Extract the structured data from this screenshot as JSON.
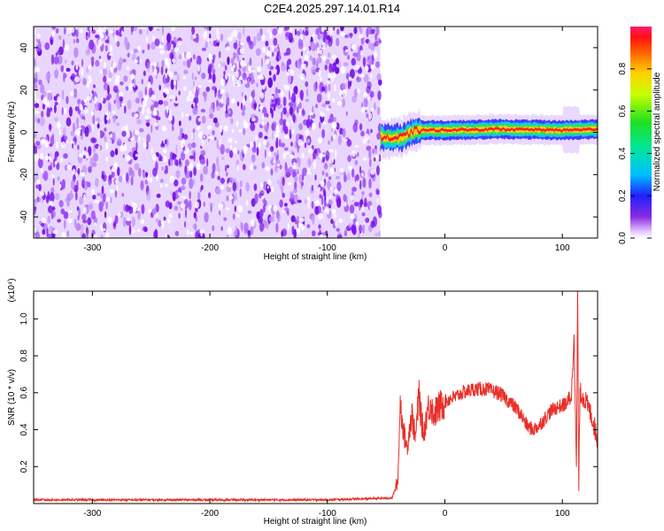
{
  "title": "C2E4.2025.297.14.01.R14",
  "colors": {
    "snr_line": "#e8302a",
    "noise_purple": "#7b19f0",
    "axis": "#000000"
  },
  "chart_data": [
    {
      "type": "heatmap",
      "title": "C2E4.2025.297.14.01.R14",
      "xlabel": "Height of straight line (km)",
      "ylabel": "Frequency (Hz)",
      "xlim": [
        -350,
        130
      ],
      "ylim": [
        -50,
        50
      ],
      "xticks": [
        -300,
        -200,
        -100,
        0,
        100
      ],
      "yticks": [
        -40,
        -20,
        0,
        20,
        40
      ],
      "colorbar": {
        "label": "Normalized spectral amplitude",
        "range": [
          0.0,
          1.0
        ],
        "ticks": [
          0.0,
          0.2,
          0.4,
          0.6,
          0.8
        ],
        "colormap": "rainbow"
      },
      "noise_region": {
        "x": [
          -350,
          -55
        ],
        "value_range": [
          0.0,
          0.2
        ]
      },
      "signal_band": {
        "x": [
          -55,
          130
        ],
        "center_frequency": [
          [
            -55,
            -2
          ],
          [
            -45,
            -3
          ],
          [
            -35,
            -2
          ],
          [
            -25,
            1
          ],
          [
            0,
            1
          ],
          [
            50,
            1.5
          ],
          [
            100,
            1
          ],
          [
            130,
            1.5
          ]
        ],
        "peak_value": 1.0
      },
      "grid": false
    },
    {
      "type": "line",
      "xlabel": "Height of straight line (km)",
      "ylabel": "SNR (10 * v/v)",
      "y_multiplier": "(x10⁴)",
      "xlim": [
        -350,
        130
      ],
      "ylim": [
        0,
        1.15
      ],
      "xticks": [
        -300,
        -200,
        -100,
        0,
        100
      ],
      "yticks": [
        0.2,
        0.4,
        0.6,
        0.8,
        1.0
      ],
      "series": [
        {
          "x": [
            -350,
            -300,
            -200,
            -100,
            -45,
            -40,
            -38,
            -35,
            -32,
            -30,
            -28,
            -25,
            -22,
            -20,
            -18,
            -15,
            -12,
            -10,
            -5,
            0,
            5,
            10,
            15,
            20,
            25,
            30,
            35,
            40,
            45,
            50,
            55,
            60,
            65,
            70,
            75,
            80,
            85,
            90,
            95,
            100,
            105,
            108,
            110,
            111,
            112,
            113,
            114,
            115,
            118,
            120,
            122,
            125,
            128,
            130
          ],
          "values": [
            0.02,
            0.02,
            0.02,
            0.02,
            0.03,
            0.12,
            0.55,
            0.38,
            0.3,
            0.42,
            0.48,
            0.35,
            0.6,
            0.45,
            0.38,
            0.5,
            0.55,
            0.48,
            0.52,
            0.55,
            0.57,
            0.58,
            0.6,
            0.61,
            0.62,
            0.62,
            0.62,
            0.61,
            0.6,
            0.58,
            0.55,
            0.52,
            0.48,
            0.42,
            0.4,
            0.42,
            0.46,
            0.5,
            0.52,
            0.53,
            0.55,
            0.6,
            0.95,
            0.5,
            0.2,
            1.15,
            0.1,
            0.6,
            0.58,
            0.55,
            0.52,
            0.47,
            0.4,
            0.33
          ]
        }
      ],
      "grid": false
    }
  ]
}
